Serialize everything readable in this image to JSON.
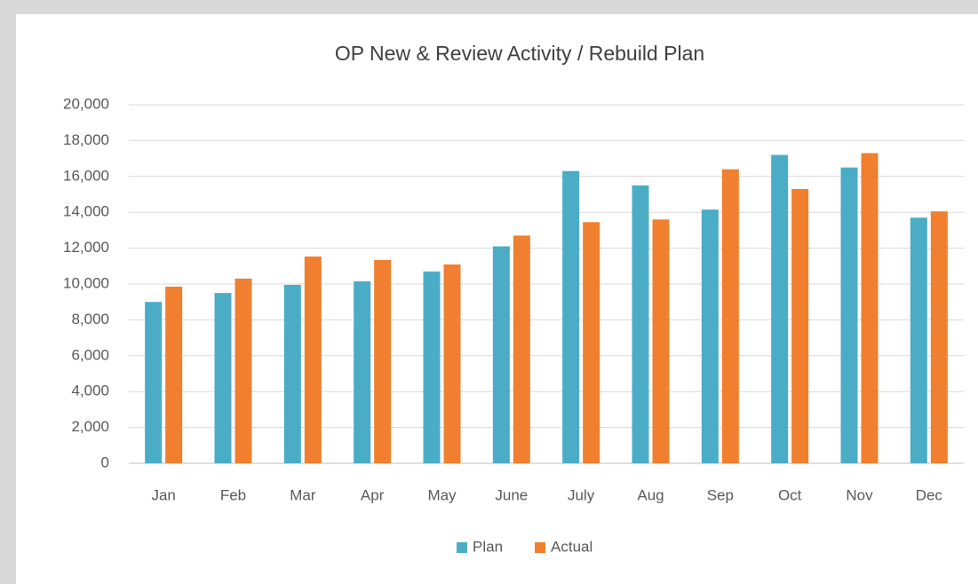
{
  "chart_data": {
    "type": "bar",
    "title": "OP New & Review Activity / Rebuild Plan",
    "categories": [
      "Jan",
      "Feb",
      "Mar",
      "Apr",
      "May",
      "June",
      "July",
      "Aug",
      "Sep",
      "Oct",
      "Nov",
      "Dec"
    ],
    "series": [
      {
        "name": "Plan",
        "color": "#4bacc6",
        "values": [
          9000,
          9500,
          9950,
          10150,
          10700,
          12100,
          16300,
          15500,
          14150,
          17200,
          16500,
          13700
        ]
      },
      {
        "name": "Actual",
        "color": "#f07f2f",
        "values": [
          9850,
          10300,
          11530,
          11340,
          11090,
          12700,
          13450,
          13600,
          16400,
          15300,
          17300,
          14050
        ]
      }
    ],
    "ylim": [
      0,
      20000
    ],
    "yticks": [
      0,
      {
        "value": 2000,
        "label": "2,000"
      },
      {
        "value": 4000,
        "label": "4,000"
      },
      {
        "value": 6000,
        "label": "6,000"
      },
      {
        "value": 8000,
        "label": "8,000"
      },
      {
        "value": 10000,
        "label": "10,000"
      },
      {
        "value": 12000,
        "label": "12,000"
      },
      {
        "value": 14000,
        "label": "14,000"
      },
      {
        "value": 16000,
        "label": "16,000"
      },
      {
        "value": 18000,
        "label": "18,000"
      },
      {
        "value": 20000,
        "label": "20,000"
      }
    ],
    "grid": true,
    "legend": "bottom"
  }
}
